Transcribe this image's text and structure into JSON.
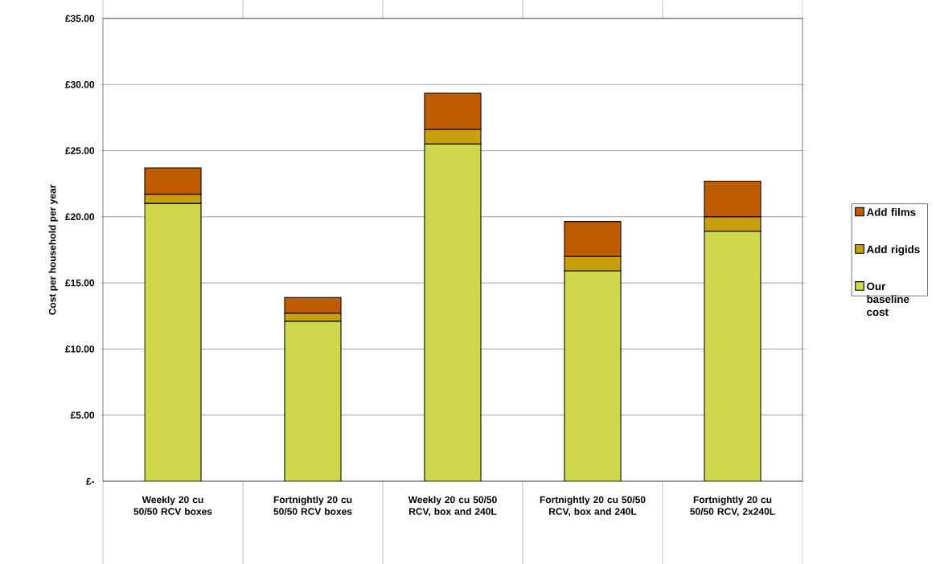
{
  "chart_data": {
    "type": "bar",
    "stacked": true,
    "ylabel": "Cost per household per year",
    "categories": [
      "Weekly 20 cu 50/50 RCV boxes",
      "Fortnightly 20 cu 50/50 RCV boxes",
      "Weekly 20 cu 50/50 RCV, box and 240L",
      "Fortnightly 20 cu 50/50 RCV, box and 240L",
      "Fortnightly 20 cu 50/50 RCV, 2x240L"
    ],
    "series": [
      {
        "name": "Our baseline cost",
        "color": "#cfd84c",
        "values": [
          21.0,
          12.1,
          25.5,
          15.9,
          18.9
        ]
      },
      {
        "name": "Add rigids",
        "color": "#c8a00c",
        "values": [
          0.7,
          0.6,
          1.1,
          1.1,
          1.1
        ]
      },
      {
        "name": "Add  films",
        "color": "#bf5b00",
        "values": [
          2.0,
          1.2,
          2.75,
          2.65,
          2.7
        ]
      }
    ],
    "ylim": [
      0,
      35
    ],
    "yticks": [
      {
        "value": 0,
        "label": "£-"
      },
      {
        "value": 5,
        "label": "£5.00"
      },
      {
        "value": 10,
        "label": "£10.00"
      },
      {
        "value": 15,
        "label": "£15.00"
      },
      {
        "value": 20,
        "label": "£20.00"
      },
      {
        "value": 25,
        "label": "£25.00"
      },
      {
        "value": 30,
        "label": "£30.00"
      },
      {
        "value": 35,
        "label": "£35.00"
      }
    ],
    "grid": "y",
    "legend": "right"
  }
}
